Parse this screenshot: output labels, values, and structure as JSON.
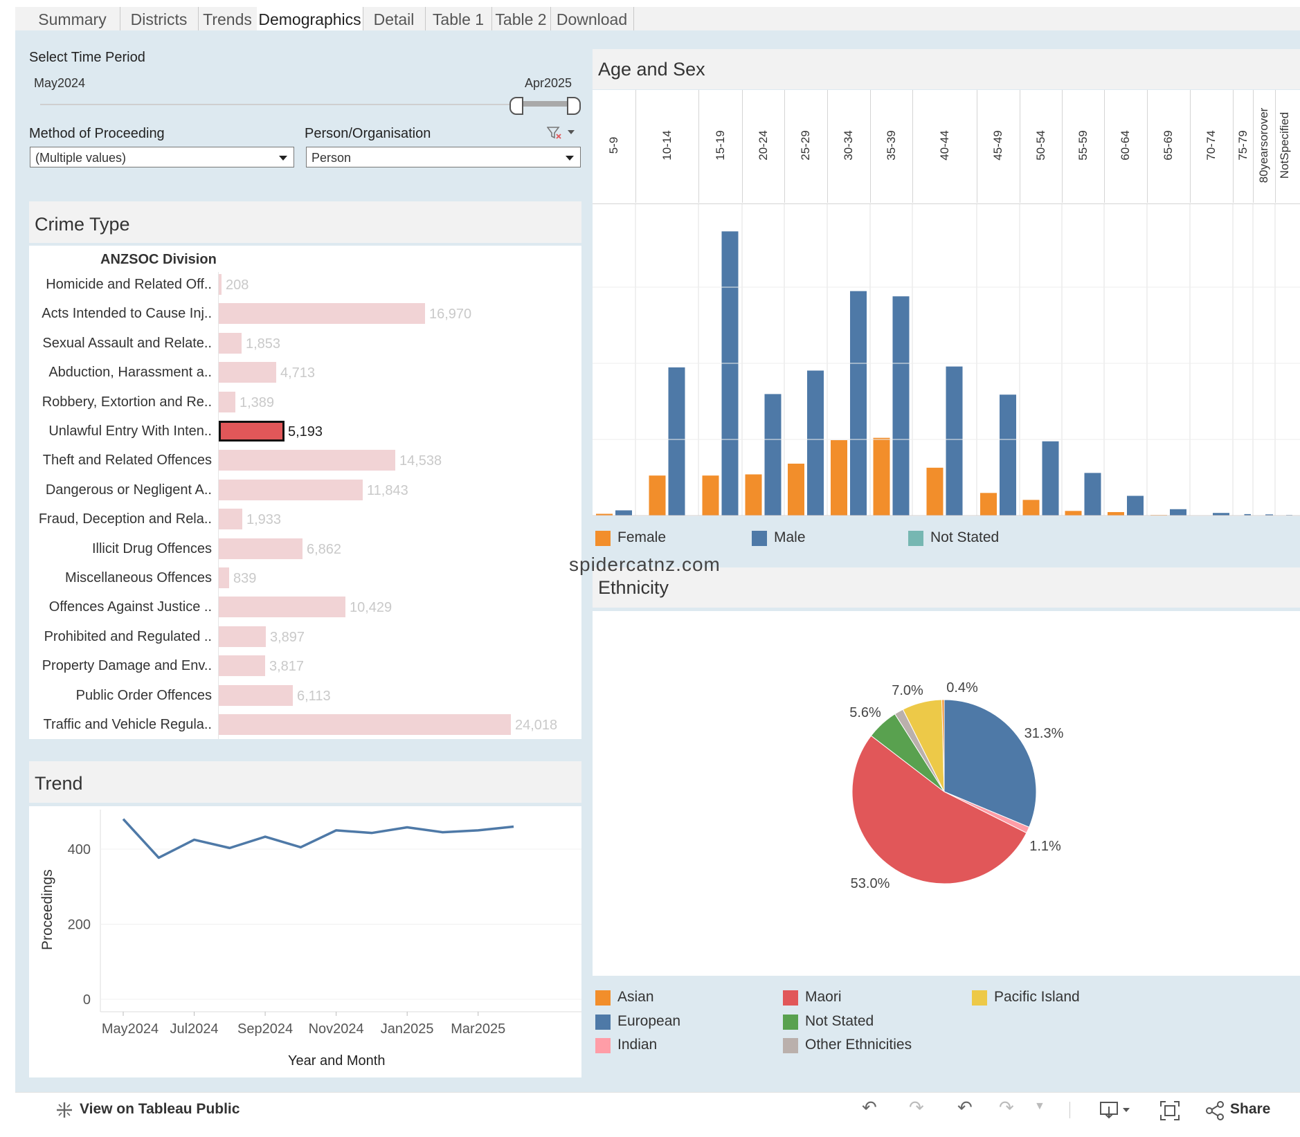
{
  "tabs": [
    {
      "label": "Summary",
      "active": false
    },
    {
      "label": "Districts",
      "active": false
    },
    {
      "label": "Trends",
      "active": false
    },
    {
      "label": "Demographics",
      "active": true
    },
    {
      "label": "Detail",
      "active": false
    },
    {
      "label": "Table 1",
      "active": false
    },
    {
      "label": "Table 2",
      "active": false
    },
    {
      "label": "Download",
      "active": false
    }
  ],
  "filters": {
    "time_period_label": "Select Time Period",
    "time_start": "May2024",
    "time_end": "Apr2025",
    "method_label": "Method of Proceeding",
    "method_value": "(Multiple values)",
    "person_label": "Person/Organisation",
    "person_value": "Person"
  },
  "crime_type": {
    "title": "Crime Type",
    "column_header": "ANZSOC Division",
    "selected_index": 5,
    "max_value": 24018,
    "rows": [
      {
        "label": "Homicide and Related Off..",
        "value": 208,
        "value_text": "208"
      },
      {
        "label": "Acts Intended to Cause Inj..",
        "value": 16970,
        "value_text": "16,970"
      },
      {
        "label": "Sexual Assault and Relate..",
        "value": 1853,
        "value_text": "1,853"
      },
      {
        "label": "Abduction, Harassment a..",
        "value": 4713,
        "value_text": "4,713"
      },
      {
        "label": "Robbery, Extortion and Re..",
        "value": 1389,
        "value_text": "1,389"
      },
      {
        "label": "Unlawful Entry With Inten..",
        "value": 5193,
        "value_text": "5,193"
      },
      {
        "label": "Theft and Related Offences",
        "value": 14538,
        "value_text": "14,538"
      },
      {
        "label": "Dangerous or Negligent A..",
        "value": 11843,
        "value_text": "11,843"
      },
      {
        "label": "Fraud, Deception and Rela..",
        "value": 1933,
        "value_text": "1,933"
      },
      {
        "label": "Illicit Drug Offences",
        "value": 6862,
        "value_text": "6,862"
      },
      {
        "label": "Miscellaneous Offences",
        "value": 839,
        "value_text": "839"
      },
      {
        "label": "Offences Against Justice ..",
        "value": 10429,
        "value_text": "10,429"
      },
      {
        "label": "Prohibited and Regulated ..",
        "value": 3897,
        "value_text": "3,897"
      },
      {
        "label": "Property Damage and Env..",
        "value": 3817,
        "value_text": "3,817"
      },
      {
        "label": "Public Order Offences",
        "value": 6113,
        "value_text": "6,113"
      },
      {
        "label": "Traffic and Vehicle Regula..",
        "value": 24018,
        "value_text": "24,018"
      }
    ]
  },
  "age_sex": {
    "title": "Age and Sex",
    "legend": [
      {
        "name": "Female",
        "color": "#f28e2b"
      },
      {
        "name": "Male",
        "color": "#4e79a7"
      },
      {
        "name": "Not Stated",
        "color": "#76b7b2"
      }
    ]
  },
  "trend": {
    "title": "Trend",
    "ylabel": "Proceedings",
    "xlabel": "Year and Month",
    "yticks": [
      "400",
      "200",
      "0"
    ],
    "xticks": [
      "May2024",
      "Jul2024",
      "Sep2024",
      "Nov2024",
      "Jan2025",
      "Mar2025"
    ]
  },
  "ethnicity": {
    "title": "Ethnicity",
    "legend": [
      {
        "name": "Asian",
        "color": "#f28e2b"
      },
      {
        "name": "European",
        "color": "#4e79a7"
      },
      {
        "name": "Indian",
        "color": "#ff9da7"
      },
      {
        "name": "Maori",
        "color": "#e15759"
      },
      {
        "name": "Not Stated",
        "color": "#59a14f"
      },
      {
        "name": "Other Ethnicities",
        "color": "#bab0ac"
      },
      {
        "name": "Pacific Island",
        "color": "#edc948"
      }
    ]
  },
  "watermark": "spidercatnz.com",
  "toolbar": {
    "view_label": "View on Tableau Public",
    "share_label": "Share"
  },
  "chart_data": [
    {
      "type": "bar",
      "title": "Age and Sex",
      "categories": [
        "5-9",
        "10-14",
        "15-19",
        "20-24",
        "25-29",
        "30-34",
        "35-39",
        "40-44",
        "45-49",
        "50-54",
        "55-59",
        "60-64",
        "65-69",
        "70-74",
        "75-79",
        "80yearsorover",
        "NotSpecified"
      ],
      "series": [
        {
          "name": "Female",
          "values": [
            60,
            1380,
            1380,
            1420,
            1790,
            2600,
            2680,
            1650,
            780,
            540,
            160,
            120,
            20,
            10,
            5,
            3,
            0
          ]
        },
        {
          "name": "Male",
          "values": [
            180,
            5110,
            9800,
            4190,
            5000,
            7740,
            7560,
            5140,
            4170,
            2560,
            1470,
            680,
            220,
            90,
            50,
            40,
            20
          ]
        },
        {
          "name": "Not Stated",
          "values": [
            0,
            0,
            0,
            0,
            0,
            0,
            0,
            0,
            0,
            0,
            0,
            0,
            0,
            0,
            0,
            0,
            0
          ]
        }
      ],
      "ylim": [
        0,
        10500
      ]
    },
    {
      "type": "line",
      "title": "Trend",
      "xlabel": "Year and Month",
      "ylabel": "Proceedings",
      "x": [
        "May2024",
        "Jun2024",
        "Jul2024",
        "Aug2024",
        "Sep2024",
        "Oct2024",
        "Nov2024",
        "Dec2024",
        "Jan2025",
        "Feb2025",
        "Mar2025",
        "Apr2025"
      ],
      "series": [
        {
          "name": "",
          "values": [
            480,
            377,
            425,
            403,
            433,
            405,
            450,
            443,
            458,
            445,
            450,
            460
          ]
        }
      ],
      "ylim": [
        0,
        500
      ]
    },
    {
      "type": "pie",
      "title": "Ethnicity",
      "categories": [
        "European",
        "Indian",
        "Maori",
        "Not Stated",
        "Other Ethnicities",
        "Pacific Island",
        "Asian"
      ],
      "values": [
        31.3,
        1.1,
        53.0,
        5.6,
        1.6,
        7.0,
        0.4
      ],
      "value_labels": [
        "31.3%",
        "1.1%",
        "53.0%",
        "5.6%",
        "",
        "7.0%",
        "0.4%"
      ]
    }
  ]
}
